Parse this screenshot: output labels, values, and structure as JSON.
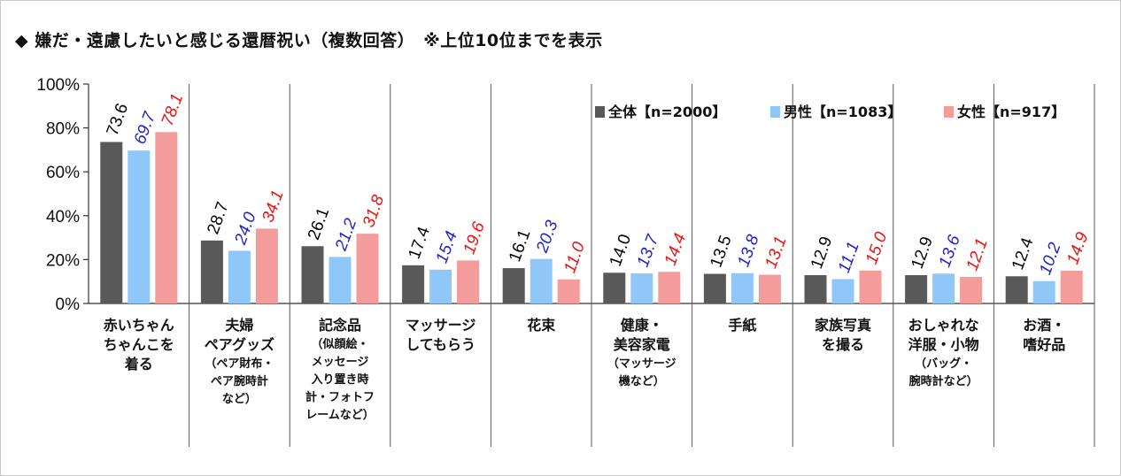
{
  "title": "◆ 嫌だ・遠慮したいと感じる還暦祝い（複数回答）　※上位10位までを表示",
  "chart_data": {
    "type": "bar",
    "title": "◆ 嫌だ・遠慮したいと感じる還暦祝い（複数回答）　※上位10位までを表示",
    "xlabel": "",
    "ylabel": "",
    "ylim": [
      0,
      100
    ],
    "yticks": [
      "0%",
      "20%",
      "40%",
      "60%",
      "80%",
      "100%"
    ],
    "grid": false,
    "legend_position": "top-right",
    "categories": [
      {
        "main": [
          "赤いちゃん",
          "ちゃんこを",
          "着る"
        ],
        "sub": []
      },
      {
        "main": [
          "夫婦",
          "ペアグッズ"
        ],
        "sub": [
          "（ペア財布・",
          "ペア腕時計",
          "など）"
        ]
      },
      {
        "main": [
          "記念品"
        ],
        "sub": [
          "（似顔絵・",
          "メッセージ",
          "入り置き時",
          "計・フォトフ",
          "レームなど）"
        ]
      },
      {
        "main": [
          "マッサージ",
          "してもらう"
        ],
        "sub": []
      },
      {
        "main": [
          "花束"
        ],
        "sub": []
      },
      {
        "main": [
          "健康・",
          "美容家電"
        ],
        "sub": [
          "（マッサージ",
          "機など）"
        ]
      },
      {
        "main": [
          "手紙"
        ],
        "sub": []
      },
      {
        "main": [
          "家族写真",
          "を撮る"
        ],
        "sub": []
      },
      {
        "main": [
          "おしゃれな",
          "洋服・小物"
        ],
        "sub": [
          "（バッグ・",
          "腕時計など）"
        ]
      },
      {
        "main": [
          "お酒・",
          "嗜好品"
        ],
        "sub": []
      }
    ],
    "series": [
      {
        "name": "全体【n=2000】",
        "color": "#595959",
        "label_color": "#000000",
        "values": [
          73.6,
          28.7,
          26.1,
          17.4,
          16.1,
          14.0,
          13.5,
          12.9,
          12.9,
          12.4
        ]
      },
      {
        "name": "男性【n=1083】",
        "color": "#8fc8f8",
        "label_color": "#1f1fd0",
        "values": [
          69.7,
          24.0,
          21.2,
          15.4,
          20.3,
          13.7,
          13.8,
          11.1,
          13.6,
          10.2
        ]
      },
      {
        "name": "女性【n=917】",
        "color": "#f49b9b",
        "label_color": "#ee1111",
        "values": [
          78.1,
          34.1,
          31.8,
          19.6,
          11.0,
          14.4,
          13.1,
          15.0,
          12.1,
          14.9
        ]
      }
    ]
  }
}
